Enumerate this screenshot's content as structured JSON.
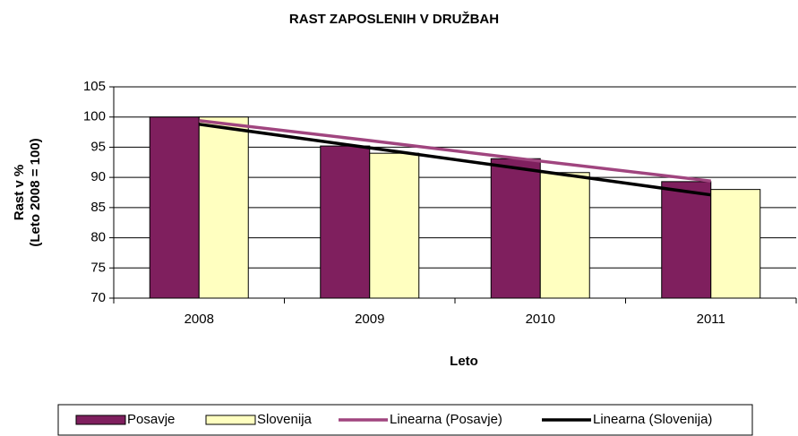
{
  "chart_data": {
    "type": "bar",
    "title": "RAST ZAPOSLENIH  V DRUŽBAH",
    "x_label": "Leto",
    "y_label": [
      "Rast v %",
      "(Leto 2008 = 100)"
    ],
    "categories": [
      "2008",
      "2009",
      "2010",
      "2011"
    ],
    "series": [
      {
        "name": "Posavje",
        "kind": "bar",
        "color": "#7f1f5e",
        "values": [
          100,
          95.2,
          93.1,
          89.3
        ]
      },
      {
        "name": "Slovenija",
        "kind": "bar",
        "color": "#ffffc0",
        "values": [
          100,
          94,
          90.8,
          88
        ]
      },
      {
        "name": "Linearna (Posavje)",
        "kind": "line",
        "color": "#a0457f",
        "values": [
          99.4,
          96.1,
          92.7,
          89.4
        ]
      },
      {
        "name": "Linearna (Slovenija)",
        "kind": "line",
        "color": "#000000",
        "values": [
          98.8,
          94.9,
          91.0,
          87.1
        ]
      }
    ],
    "ylim": [
      70,
      105
    ],
    "yticks": [
      70,
      75,
      80,
      85,
      90,
      95,
      100,
      105
    ],
    "grid": true,
    "legend": "bottom"
  }
}
